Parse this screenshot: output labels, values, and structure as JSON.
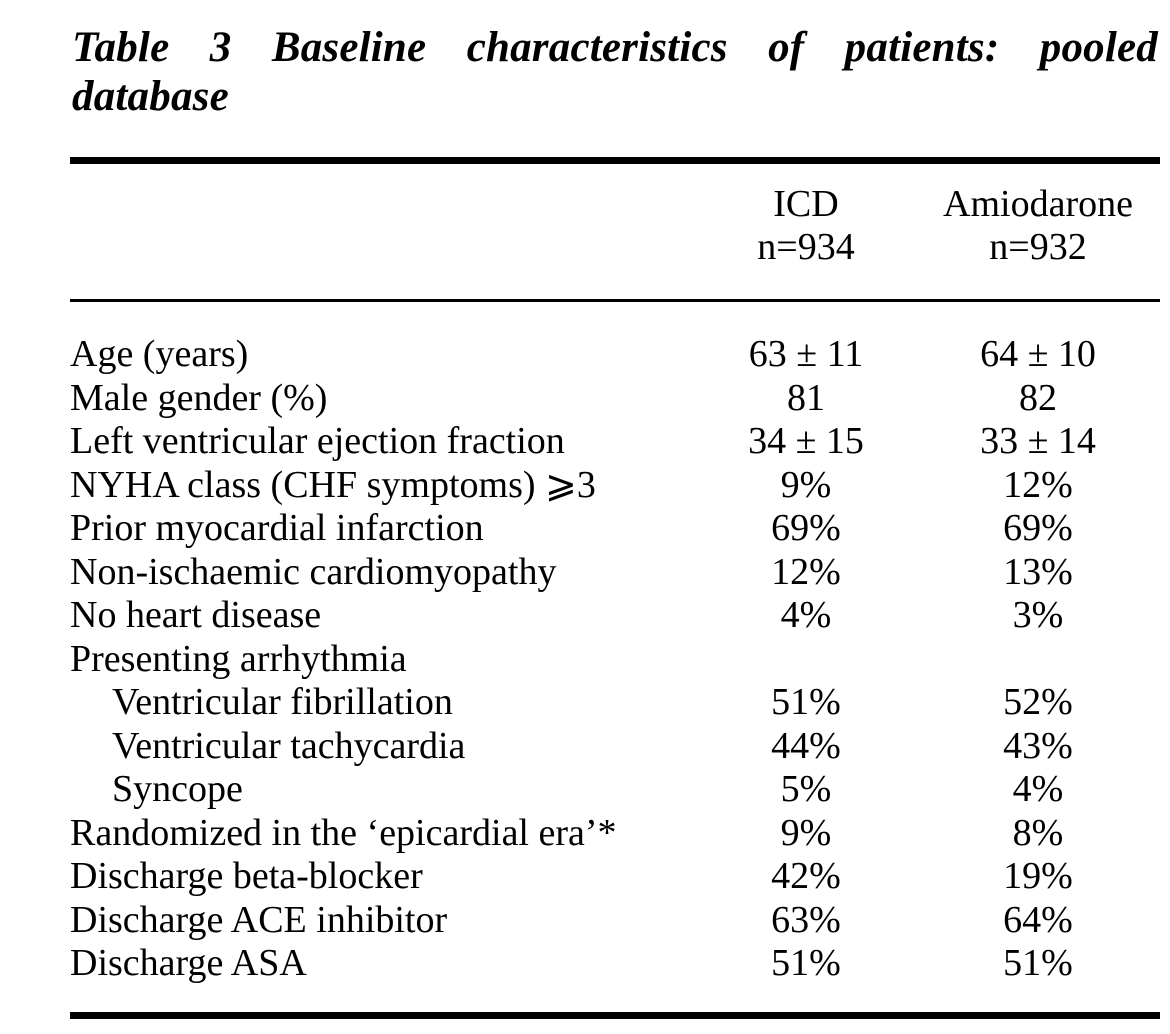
{
  "title": {
    "line1": "Table 3 Baseline characteristics of patients: pooled",
    "line2": "database"
  },
  "columns": {
    "icd": {
      "name": "ICD",
      "n": "n=934"
    },
    "amiodarone": {
      "name": "Amiodarone",
      "n": "n=932"
    }
  },
  "rows": [
    {
      "label": "Age (years)",
      "icd": "63 ± 11",
      "amiodarone": "64 ± 10"
    },
    {
      "label": "Male gender (%)",
      "icd": "81",
      "amiodarone": "82"
    },
    {
      "label": "Left ventricular ejection fraction",
      "icd": "34 ± 15",
      "amiodarone": "33 ± 14"
    },
    {
      "label": "NYHA class (CHF symptoms) ⩾3",
      "icd": "9%",
      "amiodarone": "12%"
    },
    {
      "label": "Prior myocardial infarction",
      "icd": "69%",
      "amiodarone": "69%"
    },
    {
      "label": "Non-ischaemic cardiomyopathy",
      "icd": "12%",
      "amiodarone": "13%"
    },
    {
      "label": "No heart disease",
      "icd": "4%",
      "amiodarone": "3%"
    },
    {
      "label": "Presenting arrhythmia",
      "icd": "",
      "amiodarone": ""
    },
    {
      "label": "Ventricular fibrillation",
      "icd": "51%",
      "amiodarone": "52%"
    },
    {
      "label": "Ventricular tachycardia",
      "icd": "44%",
      "amiodarone": "43%"
    },
    {
      "label": "Syncope",
      "icd": "5%",
      "amiodarone": "4%"
    },
    {
      "label": "Randomized in the ‘epicardial era’*",
      "icd": "9%",
      "amiodarone": "8%"
    },
    {
      "label": "Discharge beta-blocker",
      "icd": "42%",
      "amiodarone": "19%"
    },
    {
      "label": "Discharge ACE inhibitor",
      "icd": "63%",
      "amiodarone": "64%"
    },
    {
      "label": "Discharge ASA",
      "icd": "51%",
      "amiodarone": "51%"
    }
  ]
}
